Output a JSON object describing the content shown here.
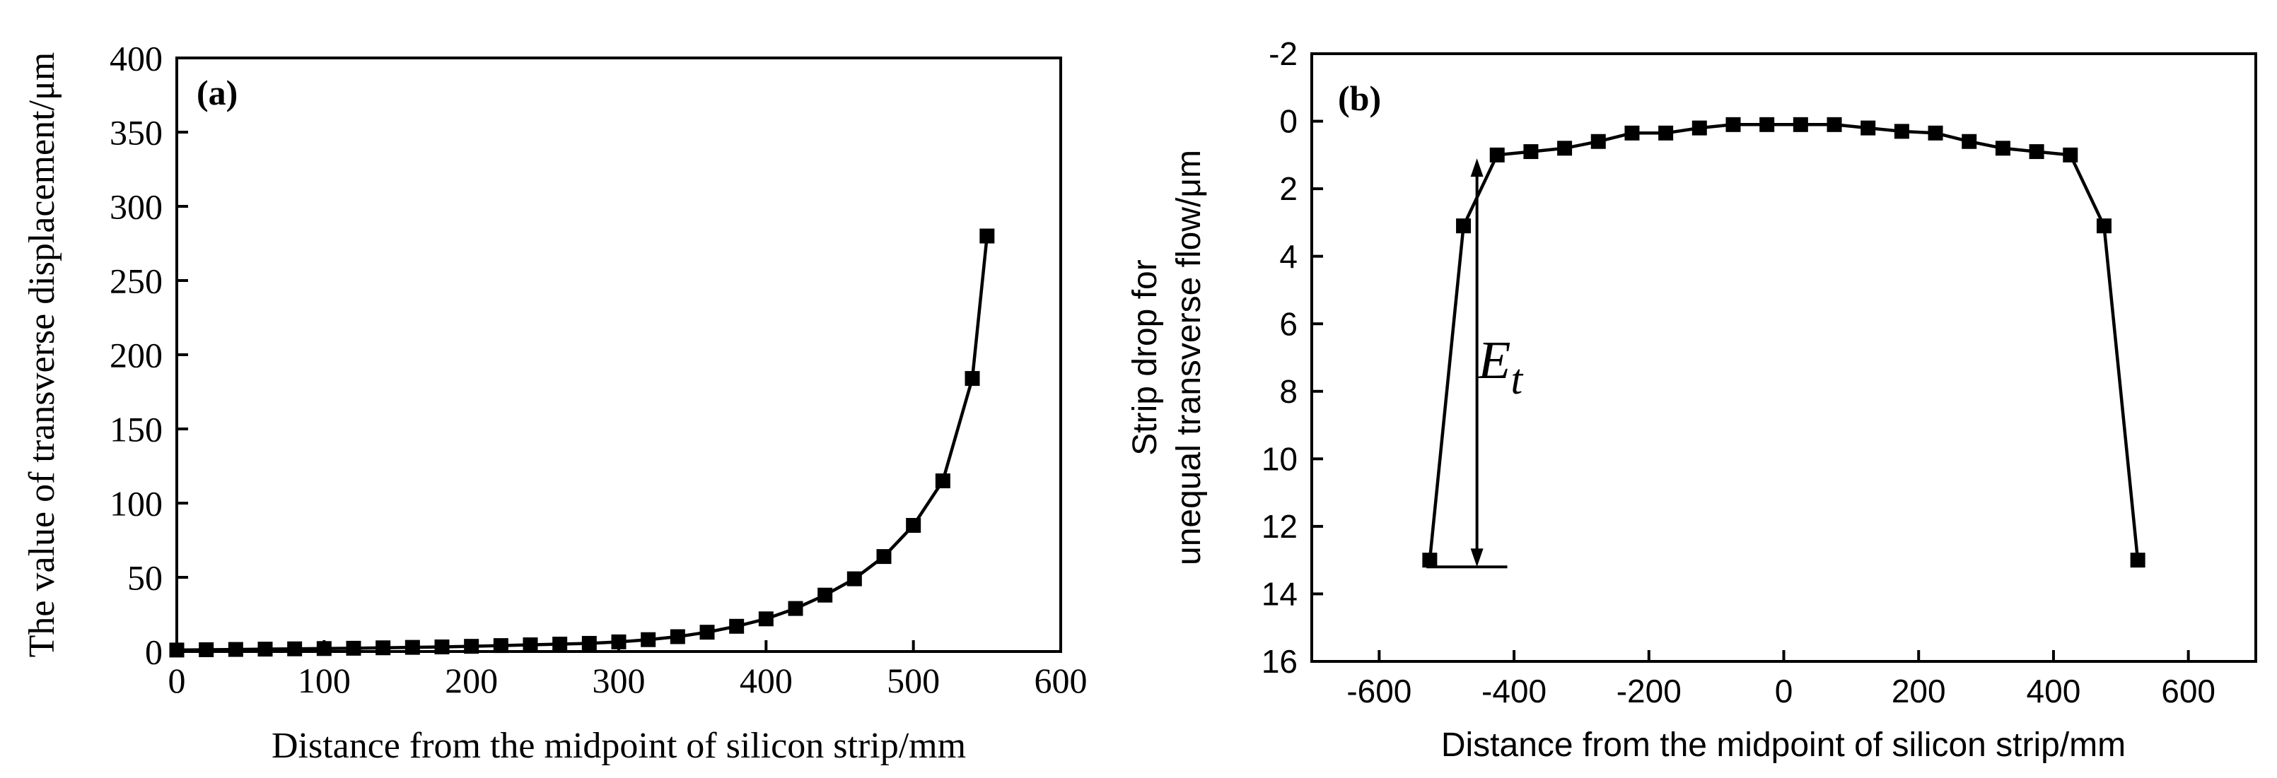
{
  "chart_data": [
    {
      "id": "a",
      "type": "line",
      "panel_label": "(a)",
      "title": "",
      "xlabel": "Distance from the midpoint of silicon strip/mm",
      "ylabel": "The value of transverse displacement/μm",
      "xlim": [
        0,
        600
      ],
      "ylim": [
        0,
        400
      ],
      "xticks": [
        0,
        100,
        200,
        300,
        400,
        500,
        600
      ],
      "yticks": [
        0,
        50,
        100,
        150,
        200,
        250,
        300,
        350,
        400
      ],
      "y_inverted": false,
      "grid": false,
      "series": [
        {
          "name": "transverse displacement",
          "marker": "square",
          "x": [
            0,
            20,
            40,
            60,
            80,
            100,
            120,
            140,
            160,
            180,
            200,
            220,
            240,
            260,
            280,
            300,
            320,
            340,
            360,
            380,
            400,
            420,
            440,
            460,
            480,
            500,
            520,
            540,
            550
          ],
          "values": [
            1,
            1.2,
            1.4,
            1.6,
            1.8,
            2,
            2.2,
            2.5,
            2.8,
            3.1,
            3.5,
            4,
            4.5,
            5,
            5.5,
            6.5,
            8,
            10,
            13,
            17,
            22,
            29,
            38,
            49,
            64,
            85,
            115,
            184,
            280
          ]
        }
      ],
      "annotations": []
    },
    {
      "id": "b",
      "type": "line",
      "panel_label": "(b)",
      "title": "",
      "xlabel": "Distance from the midpoint of silicon strip/mm",
      "ylabel": "Strip drop for\nunequal transverse flow/μm",
      "xlim": [
        -700,
        700
      ],
      "ylim": [
        -2,
        16
      ],
      "xticks": [
        -600,
        -400,
        -200,
        0,
        200,
        400,
        600
      ],
      "yticks": [
        -2,
        0,
        2,
        4,
        6,
        8,
        10,
        12,
        14,
        16
      ],
      "y_inverted": true,
      "grid": false,
      "series": [
        {
          "name": "strip drop",
          "marker": "square",
          "x": [
            -525,
            -475,
            -425,
            -375,
            -325,
            -275,
            -225,
            -175,
            -125,
            -75,
            -25,
            25,
            75,
            125,
            175,
            225,
            275,
            325,
            375,
            425,
            475,
            525
          ],
          "values": [
            13,
            3.1,
            1,
            0.9,
            0.8,
            0.6,
            0.35,
            0.35,
            0.2,
            0.1,
            0.1,
            0.1,
            0.1,
            0.2,
            0.3,
            0.35,
            0.6,
            0.8,
            0.9,
            1,
            3.1,
            13
          ]
        }
      ],
      "annotations": [
        {
          "label": "E",
          "subscript": "t",
          "x": -455,
          "y_from": 13.2,
          "y_to": 1.1,
          "baseline_x": [
            -530,
            -410
          ],
          "baseline_y": 13.2
        }
      ]
    }
  ]
}
